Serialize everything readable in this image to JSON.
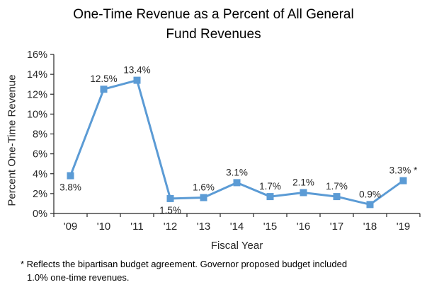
{
  "title": {
    "line1": "One-Time Revenue as a Percent of All General",
    "line2": "Fund Revenues"
  },
  "chart_data": {
    "type": "line",
    "title": "One-Time Revenue as a Percent of All General Fund Revenues",
    "xlabel": "Fiscal Year",
    "ylabel": "Percent One-Time Revenue",
    "categories": [
      "'09",
      "'10",
      "'11",
      "'12",
      "'13",
      "'14",
      "'15",
      "'16",
      "'17",
      "'18",
      "'19"
    ],
    "values": [
      3.8,
      12.5,
      13.4,
      1.5,
      1.6,
      3.1,
      1.7,
      2.1,
      1.7,
      0.9,
      3.3
    ],
    "point_labels": [
      {
        "text": "3.8%",
        "pos": "below"
      },
      {
        "text": "12.5%",
        "pos": "above"
      },
      {
        "text": "13.4%",
        "pos": "above"
      },
      {
        "text": "1.5%",
        "pos": "below"
      },
      {
        "text": "1.6%",
        "pos": "above"
      },
      {
        "text": "3.1%",
        "pos": "above"
      },
      {
        "text": "1.7%",
        "pos": "above"
      },
      {
        "text": "2.1%",
        "pos": "above"
      },
      {
        "text": "1.7%",
        "pos": "above"
      },
      {
        "text": "0.9%",
        "pos": "above"
      },
      {
        "text": "3.3% *",
        "pos": "above"
      }
    ],
    "ylim": [
      0,
      16
    ],
    "ytick_step": 2,
    "ytick_suffix": "%",
    "grid": false,
    "legend": "none",
    "line_color": "#5B9BD5",
    "marker": "square",
    "axis_color": "#262626",
    "label_color": "#262626"
  },
  "footnote": {
    "line1": "* Reflects the bipartisan budget agreement. Governor proposed budget included",
    "line2": "1.0% one-time revenues."
  }
}
